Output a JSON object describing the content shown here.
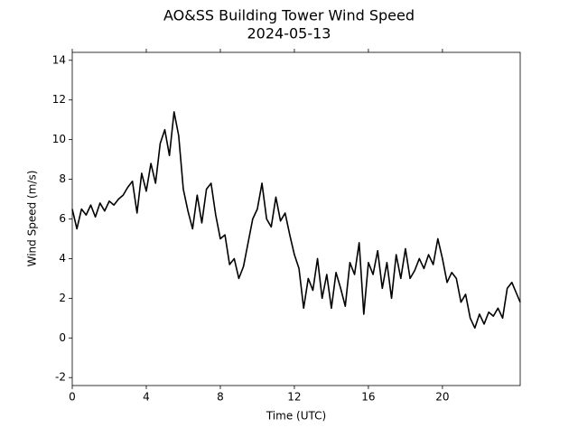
{
  "chart_data": {
    "type": "line",
    "title": "AO&SS Building Tower Wind Speed",
    "subtitle": "2024-05-13",
    "x_label": "Time (UTC)",
    "y_label": "Wind Speed (m/s)",
    "color": "#000000",
    "x": [
      0,
      0.25,
      0.5,
      0.75,
      1,
      1.25,
      1.5,
      1.75,
      2,
      2.25,
      2.5,
      2.75,
      3,
      3.25,
      3.5,
      3.75,
      4,
      4.25,
      4.5,
      4.75,
      5,
      5.25,
      5.5,
      5.75,
      6,
      6.25,
      6.5,
      6.75,
      7,
      7.25,
      7.5,
      7.75,
      8,
      8.25,
      8.5,
      8.75,
      9,
      9.25,
      9.5,
      9.75,
      10,
      10.25,
      10.5,
      10.75,
      11,
      11.25,
      11.5,
      11.75,
      12,
      12.25,
      12.5,
      12.75,
      13,
      13.25,
      13.5,
      13.75,
      14,
      14.25,
      14.5,
      14.75,
      15,
      15.25,
      15.5,
      15.75,
      16,
      16.25,
      16.5,
      16.75,
      17,
      17.25,
      17.5,
      17.75,
      18,
      18.25,
      18.5,
      18.75,
      19,
      19.25,
      19.5,
      19.75,
      20,
      20.25,
      20.5,
      20.75,
      21,
      21.25,
      21.5,
      21.75,
      22,
      22.25,
      22.5,
      22.75,
      23,
      23.25,
      23.5,
      23.75,
      24.2
    ],
    "values": [
      6.5,
      5.5,
      6.5,
      6.2,
      6.7,
      6.1,
      6.8,
      6.4,
      6.9,
      6.7,
      7.0,
      7.2,
      7.6,
      7.9,
      6.3,
      8.3,
      7.4,
      8.8,
      7.8,
      9.8,
      10.5,
      9.2,
      11.4,
      10.2,
      7.5,
      6.4,
      5.5,
      7.2,
      5.8,
      7.5,
      7.8,
      6.2,
      5.0,
      5.2,
      3.7,
      4.0,
      3.0,
      3.6,
      4.8,
      6.0,
      6.5,
      7.8,
      6.0,
      5.6,
      7.1,
      5.9,
      6.3,
      5.2,
      4.2,
      3.5,
      1.5,
      3.0,
      2.4,
      4.0,
      2.0,
      3.2,
      1.5,
      3.3,
      2.5,
      1.6,
      3.8,
      3.2,
      4.8,
      1.2,
      3.8,
      3.2,
      4.4,
      2.5,
      3.8,
      2.0,
      4.2,
      3.0,
      4.5,
      3.0,
      3.4,
      4.0,
      3.5,
      4.2,
      3.7,
      5.0,
      4.0,
      2.8,
      3.3,
      3.0,
      1.8,
      2.2,
      1.0,
      0.5,
      1.2,
      0.7,
      1.3,
      1.1,
      1.5,
      1.0,
      2.5,
      2.8,
      1.8
    ],
    "xlim": [
      0,
      24.2
    ],
    "xticks": [
      0,
      4,
      8,
      12,
      16,
      20
    ],
    "ylim": [
      -2.4,
      14.4
    ],
    "yticks": [
      -2,
      0,
      2,
      4,
      6,
      8,
      10,
      12,
      14
    ]
  }
}
